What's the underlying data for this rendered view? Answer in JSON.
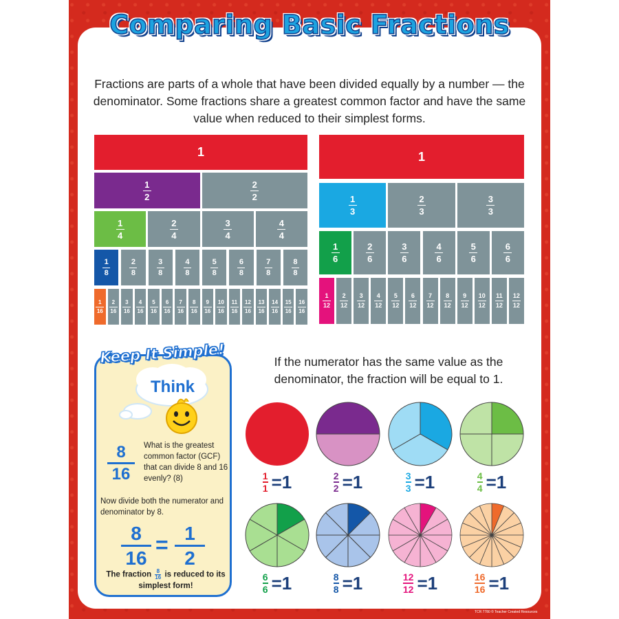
{
  "title": "Comparing Basic Fractions",
  "intro": "Fractions are parts of a whole that have been divided equally by a number — the denominator. Some fractions share a greatest common factor and have the same value when reduced to their simplest forms.",
  "colors": {
    "border_red": "#d42a1e",
    "gray": "#7f9399",
    "red": "#e31e2d",
    "purple": "#7a2a8e",
    "green": "#6cbd45",
    "navy": "#1457a8",
    "orange": "#ef6a2b",
    "cyan": "#1aa8e2",
    "dark_green": "#12a04a",
    "magenta": "#e4127c",
    "blue": "#1e6fd0"
  },
  "left_bars": {
    "whole_label": "1",
    "rows": [
      {
        "denominator": "2",
        "highlight": "purple"
      },
      {
        "denominator": "4",
        "highlight": "green"
      },
      {
        "denominator": "8",
        "highlight": "navy"
      },
      {
        "denominator": "16",
        "highlight": "orange"
      }
    ]
  },
  "right_bars": {
    "whole_label": "1",
    "rows": [
      {
        "denominator": "3",
        "highlight": "cyan"
      },
      {
        "denominator": "6",
        "highlight": "dark_green"
      },
      {
        "denominator": "12",
        "highlight": "magenta"
      }
    ]
  },
  "sidebar": {
    "heading": "Keep It Simple!",
    "think": "Think",
    "q_num": "8",
    "q_den": "16",
    "question": "What is the greatest common factor (GCF) that can divide 8 and 16 evenly? (8)",
    "divide": "Now divide both the numerator and denominator by 8.",
    "eq_left_num": "8",
    "eq_left_den": "16",
    "eq_sign": "=",
    "eq_right_num": "1",
    "eq_right_den": "2",
    "reduced_before": "The fraction",
    "reduced_num": "8",
    "reduced_den": "16",
    "reduced_after": "is reduced to its simplest form!"
  },
  "numerator_text": "If the numerator has the same value as the denominator, the fraction will be equal to 1.",
  "circles": [
    {
      "n": 1,
      "label_num": "1",
      "label_den": "1",
      "main": "#e31e2d",
      "light": "#e31e2d",
      "label_color": "#e31e2d"
    },
    {
      "n": 2,
      "label_num": "2",
      "label_den": "2",
      "main": "#7a2a8e",
      "light": "#d892c4",
      "label_color": "#7a2a8e"
    },
    {
      "n": 3,
      "label_num": "3",
      "label_den": "3",
      "main": "#1aa8e2",
      "light": "#9fdcf5",
      "label_color": "#1aa8e2"
    },
    {
      "n": 4,
      "label_num": "4",
      "label_den": "4",
      "main": "#6cbd45",
      "light": "#bfe3a6",
      "label_color": "#6cbd45"
    },
    {
      "n": 6,
      "label_num": "6",
      "label_den": "6",
      "main": "#12a04a",
      "light": "#a9df92",
      "label_color": "#12a04a"
    },
    {
      "n": 8,
      "label_num": "8",
      "label_den": "8",
      "main": "#1457a8",
      "light": "#a9c4ea",
      "label_color": "#1457a8"
    },
    {
      "n": 12,
      "label_num": "12",
      "label_den": "12",
      "main": "#e4127c",
      "light": "#f6b3d3",
      "label_color": "#e4127c"
    },
    {
      "n": 16,
      "label_num": "16",
      "label_den": "16",
      "main": "#ef6a2b",
      "light": "#fbd1a4",
      "label_color": "#ef6a2b"
    }
  ],
  "equals_one": "=1",
  "footer": "TCR 7780 © Teacher Created Resources"
}
